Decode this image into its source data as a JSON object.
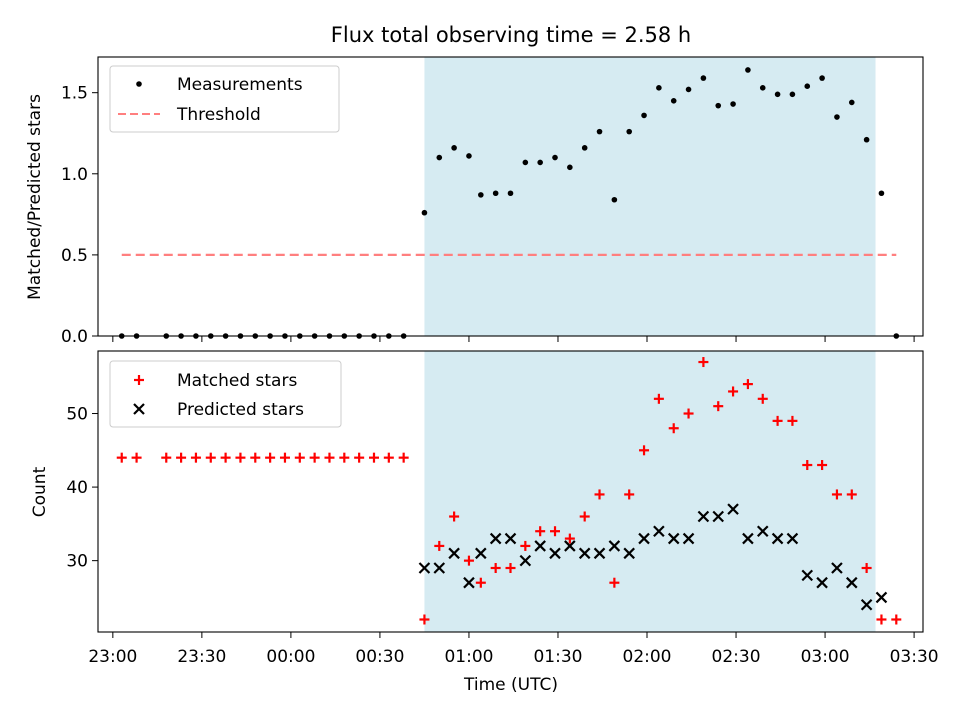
{
  "title": "Flux total observing time = 2.58 h",
  "colors": {
    "shade": "#add8e6",
    "measurement": "#000000",
    "threshold": "#ff7f7f",
    "matched": "#ff0000",
    "predicted": "#000000"
  },
  "chart_data": [
    {
      "type": "scatter",
      "panel": "top",
      "ylabel": "Matched/Predicted stars",
      "ylim": [
        0,
        1.72
      ],
      "yticks": [
        0.0,
        0.5,
        1.0,
        1.5
      ],
      "ytick_labels": [
        "0.0",
        "0.5",
        "1.0",
        "1.5"
      ],
      "legend_position": "upper-left",
      "shaded_region": {
        "x_start": "00:45",
        "x_end": "03:17"
      },
      "series": [
        {
          "name": "Measurements",
          "x": [
            "23:03",
            "23:08",
            "23:18",
            "23:23",
            "23:28",
            "23:33",
            "23:38",
            "23:43",
            "23:48",
            "23:53",
            "23:58",
            "00:03",
            "00:08",
            "00:13",
            "00:18",
            "00:23",
            "00:28",
            "00:33",
            "00:38",
            "00:45",
            "00:50",
            "00:55",
            "01:00",
            "01:04",
            "01:09",
            "01:14",
            "01:19",
            "01:24",
            "01:29",
            "01:34",
            "01:39",
            "01:44",
            "01:49",
            "01:54",
            "01:59",
            "02:04",
            "02:09",
            "02:14",
            "02:19",
            "02:24",
            "02:29",
            "02:34",
            "02:39",
            "02:44",
            "02:49",
            "02:54",
            "02:59",
            "03:04",
            "03:09",
            "03:14",
            "03:19",
            "03:24"
          ],
          "y": [
            0,
            0,
            0,
            0,
            0,
            0,
            0,
            0,
            0,
            0,
            0,
            0,
            0,
            0,
            0,
            0,
            0,
            0,
            0,
            0.76,
            1.1,
            1.16,
            1.11,
            0.87,
            0.88,
            0.88,
            1.07,
            1.07,
            1.1,
            1.04,
            1.16,
            1.26,
            0.84,
            1.26,
            1.36,
            1.53,
            1.45,
            1.52,
            1.59,
            1.42,
            1.43,
            1.64,
            1.53,
            1.49,
            1.49,
            1.54,
            1.59,
            1.35,
            1.44,
            1.21,
            0.88,
            0
          ]
        },
        {
          "name": "Threshold",
          "line_style": "dashed",
          "x": [
            "23:03",
            "03:24"
          ],
          "y": [
            0.5,
            0.5
          ]
        }
      ]
    },
    {
      "type": "scatter",
      "panel": "bottom",
      "xlabel": "Time (UTC)",
      "ylabel": "Count",
      "ylim": [
        20.3,
        58.5
      ],
      "yticks": [
        30,
        40,
        50
      ],
      "ytick_labels": [
        "30",
        "40",
        "50"
      ],
      "xlim": [
        "22:55",
        "03:33"
      ],
      "xticks": [
        "23:00",
        "23:30",
        "00:00",
        "00:30",
        "01:00",
        "01:30",
        "02:00",
        "02:30",
        "03:00",
        "03:30"
      ],
      "xtick_labels": [
        "23:00",
        "23:30",
        "00:00",
        "00:30",
        "01:00",
        "01:30",
        "02:00",
        "02:30",
        "03:00",
        "03:30"
      ],
      "legend_position": "upper-left",
      "shaded_region": {
        "x_start": "00:45",
        "x_end": "03:17"
      },
      "series": [
        {
          "name": "Matched stars",
          "marker": "+",
          "x": [
            "23:03",
            "23:08",
            "23:18",
            "23:23",
            "23:28",
            "23:33",
            "23:38",
            "23:43",
            "23:48",
            "23:53",
            "23:58",
            "00:03",
            "00:08",
            "00:13",
            "00:18",
            "00:23",
            "00:28",
            "00:33",
            "00:38",
            "00:45",
            "00:50",
            "00:55",
            "01:00",
            "01:04",
            "01:09",
            "01:14",
            "01:19",
            "01:24",
            "01:29",
            "01:34",
            "01:39",
            "01:44",
            "01:49",
            "01:54",
            "01:59",
            "02:04",
            "02:09",
            "02:14",
            "02:19",
            "02:24",
            "02:29",
            "02:34",
            "02:39",
            "02:44",
            "02:49",
            "02:54",
            "02:59",
            "03:04",
            "03:09",
            "03:14",
            "03:19",
            "03:24"
          ],
          "y": [
            44,
            44,
            44,
            44,
            44,
            44,
            44,
            44,
            44,
            44,
            44,
            44,
            44,
            44,
            44,
            44,
            44,
            44,
            44,
            22,
            32,
            36,
            30,
            27,
            29,
            29,
            32,
            34,
            34,
            33,
            36,
            39,
            27,
            39,
            45,
            52,
            48,
            50,
            57,
            51,
            53,
            54,
            52,
            49,
            49,
            43,
            43,
            39,
            39,
            29,
            22,
            22
          ]
        },
        {
          "name": "Predicted stars",
          "marker": "x",
          "x": [
            "00:45",
            "00:50",
            "00:55",
            "01:00",
            "01:04",
            "01:09",
            "01:14",
            "01:19",
            "01:24",
            "01:29",
            "01:34",
            "01:39",
            "01:44",
            "01:49",
            "01:54",
            "01:59",
            "02:04",
            "02:09",
            "02:14",
            "02:19",
            "02:24",
            "02:29",
            "02:34",
            "02:39",
            "02:44",
            "02:49",
            "02:54",
            "02:59",
            "03:04",
            "03:09",
            "03:14",
            "03:19"
          ],
          "y": [
            29,
            29,
            31,
            27,
            31,
            33,
            33,
            30,
            32,
            31,
            32,
            31,
            31,
            32,
            31,
            33,
            34,
            33,
            33,
            36,
            36,
            37,
            33,
            34,
            33,
            33,
            28,
            27,
            29,
            27,
            24,
            25
          ]
        }
      ]
    }
  ]
}
